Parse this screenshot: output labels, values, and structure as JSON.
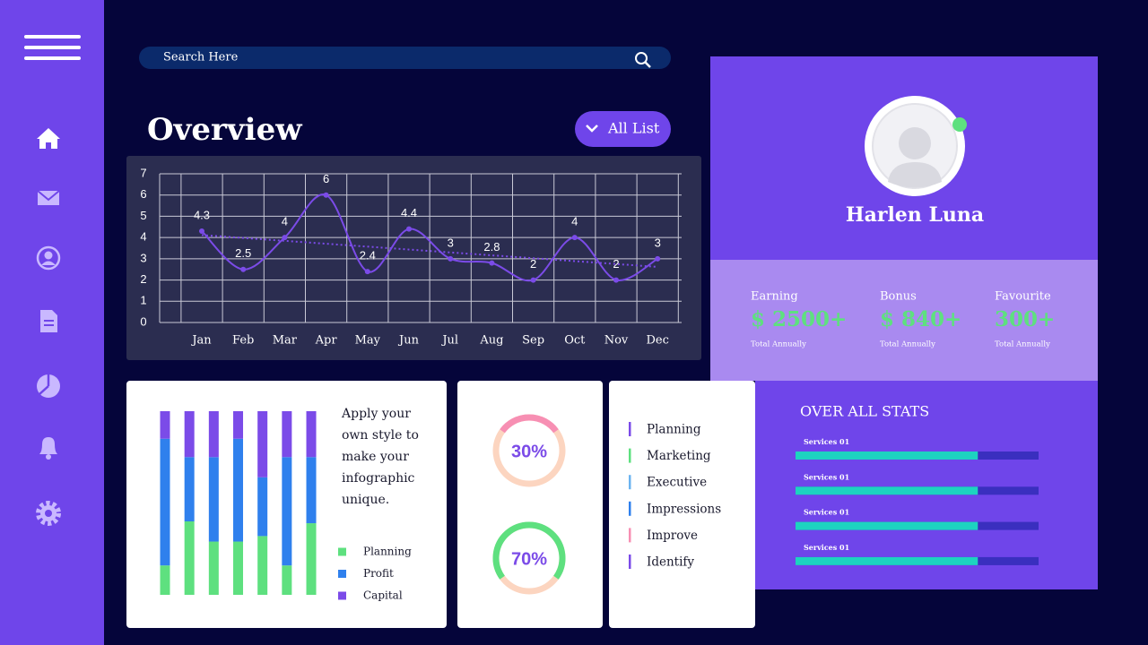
{
  "search": {
    "placeholder": "Search Here"
  },
  "overview": {
    "title": "Overview",
    "button": "All List"
  },
  "chart_data": [
    {
      "type": "line",
      "categories": [
        "Jan",
        "Feb",
        "Mar",
        "Apr",
        "May",
        "Jun",
        "Jul",
        "Aug",
        "Sep",
        "Oct",
        "Nov",
        "Dec"
      ],
      "values": [
        4.3,
        2.5,
        4,
        6,
        2.4,
        4.4,
        3,
        2.8,
        2,
        4,
        2,
        3
      ],
      "ylim": [
        0,
        7
      ],
      "yticks": [
        0,
        1,
        2,
        3,
        4,
        5,
        6,
        7
      ],
      "grid": true,
      "smooth": true,
      "trendline": true,
      "color": "#7b4be8"
    },
    {
      "type": "bar",
      "stacked": true,
      "legend": "right",
      "categories": [
        null,
        null,
        null,
        null,
        null,
        null,
        null
      ],
      "ylim": [
        0,
        100
      ],
      "series": [
        {
          "name": "Planning",
          "color": "#5ee07f",
          "values": [
            16,
            40,
            29,
            29,
            32,
            16,
            39
          ]
        },
        {
          "name": "Profit",
          "color": "#2f80ed",
          "values": [
            69,
            35,
            46,
            56,
            32,
            59,
            36
          ]
        },
        {
          "name": "Capital",
          "color": "#7b4be8",
          "values": [
            15,
            25,
            25,
            15,
            36,
            25,
            25
          ]
        }
      ]
    },
    {
      "type": "donut",
      "values": [
        30,
        70
      ],
      "value_labels": [
        "30%",
        "70%"
      ],
      "ylim": [
        0,
        100
      ],
      "colors": [
        "#f78fb3",
        "#5ee07f"
      ],
      "track_color": "#fcd5c0"
    },
    {
      "type": "bar",
      "orientation": "horizontal",
      "title": "OVER ALL STATS",
      "categories": [
        "Services 01",
        "Services 01",
        "Services 01",
        "Services 01"
      ],
      "values": [
        75,
        75,
        75,
        75
      ],
      "xlim": [
        0,
        100
      ],
      "color": "#1dd3c0",
      "track_color": "#3a2fbf"
    }
  ],
  "note": "Apply your own style to make your infographic unique.",
  "list": [
    {
      "label": "Planning",
      "color": "#7b4be8"
    },
    {
      "label": "Marketing",
      "color": "#5ee07f"
    },
    {
      "label": "Executive",
      "color": "#6cb4f0"
    },
    {
      "label": "Impressions",
      "color": "#2f80ed"
    },
    {
      "label": "Improve",
      "color": "#f78fb3"
    },
    {
      "label": "Identify",
      "color": "#7b4be8"
    }
  ],
  "profile": {
    "name": "Harlen Luna",
    "stats": [
      {
        "label": "Earning",
        "value": "$ 2500+",
        "sub": "Total Annually"
      },
      {
        "label": "Bonus",
        "value": "$ 840+",
        "sub": "Total Annually"
      },
      {
        "label": "Favourite",
        "value": "300+",
        "sub": "Total Annually"
      }
    ]
  }
}
